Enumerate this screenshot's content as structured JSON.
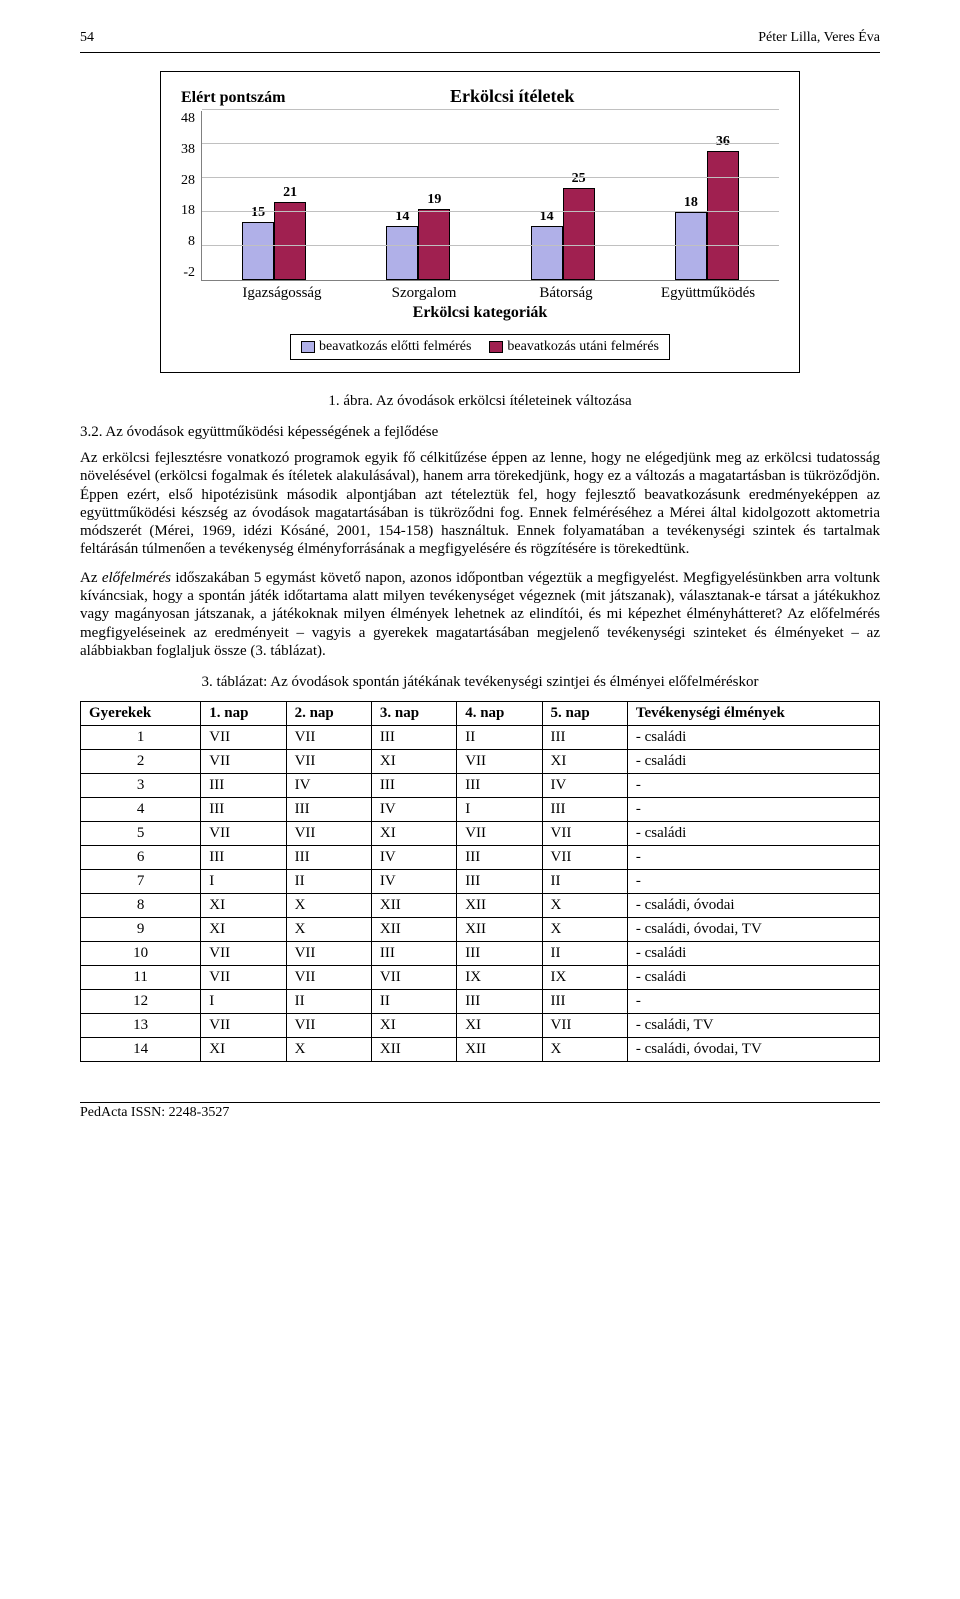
{
  "page_number": "54",
  "running_head": "Péter Lilla, Veres Éva",
  "chart": {
    "type": "bar",
    "y_label": "Elért pontszám",
    "title": "Erkölcsi ítéletek",
    "y_ticks": [
      "48",
      "38",
      "28",
      "18",
      "8",
      "-2"
    ],
    "y_min": -2,
    "y_max": 48,
    "categories": [
      "Igazságosság",
      "Szorgalom",
      "Bátorság",
      "Együttműködés"
    ],
    "series": [
      {
        "name": "beavatkozás előtti felmérés",
        "color": "#b0b0e8",
        "values": [
          15,
          14,
          14,
          18
        ]
      },
      {
        "name": "beavatkozás utáni felmérés",
        "color": "#a02050",
        "values": [
          21,
          19,
          25,
          36
        ]
      }
    ],
    "sub_x_label": "Erkölcsi kategoriák",
    "bar_border": "#000000",
    "grid_color": "#c0c0c0",
    "background": "#ffffff",
    "title_fontsize": 18,
    "label_fontsize": 15
  },
  "figure_caption": "1. ábra. Az óvodások erkölcsi ítéleteinek változása",
  "subheading": "3.2. Az óvodások együttműködési képességének a fejlődése",
  "para1": "Az erkölcsi fejlesztésre vonatkozó programok egyik fő célkitűzése éppen az lenne, hogy ne elégedjünk meg az erkölcsi tudatosság növelésével (erkölcsi fogalmak és ítéletek alakulásával), hanem arra törekedjünk, hogy ez a változás a magatartásban is tükröződjön. Éppen ezért, első hipotézisünk második alpontjában azt tételeztük fel, hogy fejlesztő beavatkozásunk eredményeképpen az együttműködési készség az óvodások magatartásában is tükröződni fog. Ennek felméréséhez a Mérei által kidolgozott aktometria módszerét (Mérei, 1969, idézi Kósáné, 2001, 154-158) használtuk. Ennek folyamatában a tevékenységi szintek és tartalmak feltárásán túlmenően a tevékenység élményforrásának a megfigyelésére és rögzítésére is törekedtünk.",
  "para2_html": "Az <i>előfelmérés</i> időszakában 5 egymást követő napon, azonos időpontban végeztük a megfigyelést. Megfigyelésünkben arra voltunk kíváncsiak, hogy a spontán játék időtartama alatt milyen tevékenységet végeznek (mit játszanak), választanak-e társat a játékukhoz vagy magányosan játszanak, a játékoknak milyen élmények lehetnek az elindítói, és mi képezhet élményhátteret? Az előfelmérés megfigyeléseinek az eredményeit – vagyis a gyerekek magatartásában megjelenő tevékenységi szinteket és élményeket – az alábbiakban foglaljuk össze (3. táblázat).",
  "table_caption": "3. táblázat: Az óvodások spontán játékának tevékenységi szintjei és élményei előfelméréskor",
  "table": {
    "columns": [
      "Gyerekek",
      "1. nap",
      "2. nap",
      "3. nap",
      "4. nap",
      "5. nap",
      "Tevékenységi élmények"
    ],
    "rows": [
      [
        "1",
        "VII",
        "VII",
        "III",
        "II",
        "III",
        "- családi"
      ],
      [
        "2",
        "VII",
        "VII",
        "XI",
        "VII",
        "XI",
        "- családi"
      ],
      [
        "3",
        "III",
        "IV",
        "III",
        "III",
        "IV",
        "-"
      ],
      [
        "4",
        "III",
        "III",
        "IV",
        "I",
        "III",
        "-"
      ],
      [
        "5",
        "VII",
        "VII",
        "XI",
        "VII",
        "VII",
        "- családi"
      ],
      [
        "6",
        "III",
        "III",
        "IV",
        "III",
        "VII",
        "-"
      ],
      [
        "7",
        "I",
        "II",
        "IV",
        "III",
        "II",
        "-"
      ],
      [
        "8",
        "XI",
        "X",
        "XII",
        "XII",
        "X",
        "- családi, óvodai"
      ],
      [
        "9",
        "XI",
        "X",
        "XII",
        "XII",
        "X",
        "- családi, óvodai, TV"
      ],
      [
        "10",
        "VII",
        "VII",
        "III",
        "III",
        "II",
        "- családi"
      ],
      [
        "11",
        "VII",
        "VII",
        "VII",
        "IX",
        "IX",
        "- családi"
      ],
      [
        "12",
        "I",
        "II",
        "II",
        "III",
        "III",
        "-"
      ],
      [
        "13",
        "VII",
        "VII",
        "XI",
        "XI",
        "VII",
        "- családi, TV"
      ],
      [
        "14",
        "XI",
        "X",
        "XII",
        "XII",
        "X",
        "- családi, óvodai, TV"
      ]
    ]
  },
  "footer": "PedActa ISSN: 2248-3527"
}
